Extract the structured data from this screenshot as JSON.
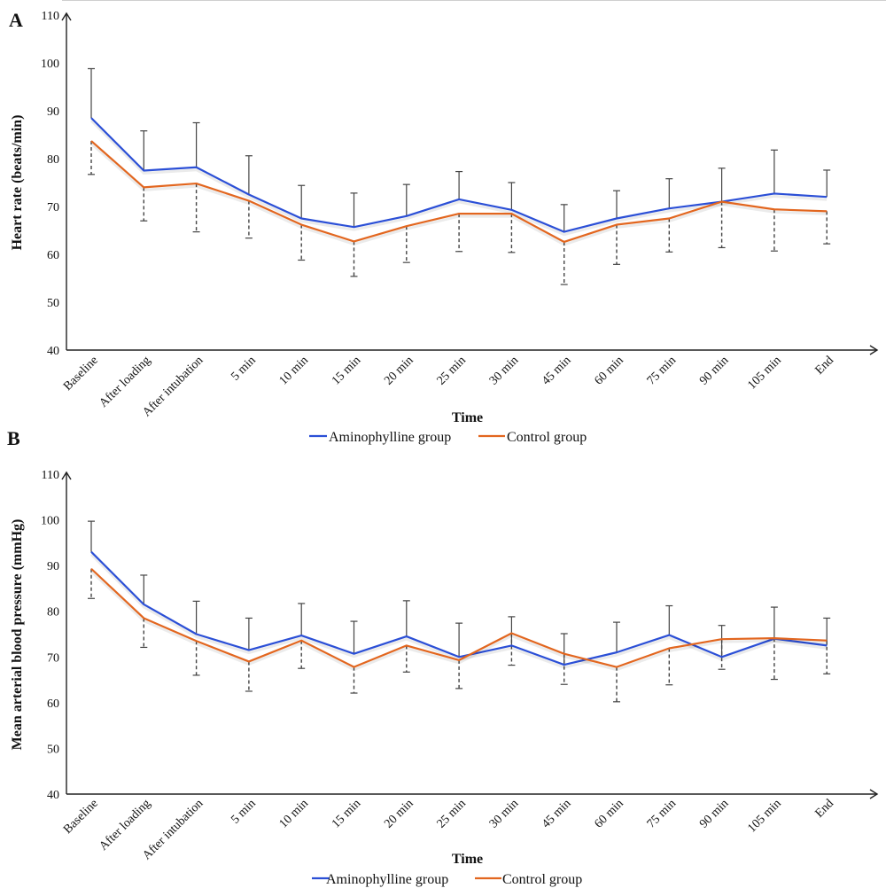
{
  "colors": {
    "aminophylline": "#2b4fd6",
    "control": "#e2661f",
    "axis": "#222222"
  },
  "chart_data": [
    {
      "type": "line",
      "panel_label": "A",
      "xlabel": "Time",
      "ylabel": "Heart rate (beats/min)",
      "ylim": [
        40,
        110
      ],
      "yticks": [
        "40",
        "50",
        "60",
        "70",
        "80",
        "90",
        "100",
        "110"
      ],
      "grid": false,
      "legend_position": "bottom-center",
      "categories": [
        "Baseline",
        "After loading",
        "After intubation",
        "5 min",
        "10 min",
        "15 min",
        "20 min",
        "25 min",
        "30 min",
        "45 min",
        "60 min",
        "75 min",
        "90 min",
        "105 min",
        "End"
      ],
      "series": [
        {
          "name": "Aminophylline group",
          "values": [
            88.5,
            77.5,
            78.2,
            72.5,
            67.5,
            65.7,
            68.0,
            71.5,
            69.3,
            64.7,
            67.5,
            69.6,
            71.0,
            72.7,
            72.0
          ],
          "error_upper": [
            98.8,
            85.8,
            87.5,
            80.6,
            74.4,
            72.8,
            74.6,
            77.3,
            75.0,
            70.4,
            73.3,
            75.8,
            78.0,
            81.8,
            77.6
          ],
          "error_style": "solid-up"
        },
        {
          "name": "Control group",
          "values": [
            83.7,
            74.0,
            74.8,
            71.2,
            66.2,
            62.7,
            65.9,
            68.5,
            68.5,
            62.6,
            66.2,
            67.5,
            71.0,
            69.4,
            69.0
          ],
          "error_lower": [
            76.7,
            67.0,
            64.7,
            63.4,
            58.8,
            55.4,
            58.3,
            60.6,
            60.4,
            53.7,
            57.9,
            60.5,
            61.4,
            60.7,
            62.2
          ],
          "error_style": "dashed-down"
        }
      ]
    },
    {
      "type": "line",
      "panel_label": "B",
      "xlabel": "Time",
      "ylabel": "Mean arterial blood pressure (mmHg)",
      "ylim": [
        40,
        110
      ],
      "yticks": [
        "40",
        "50",
        "60",
        "70",
        "80",
        "90",
        "100",
        "110"
      ],
      "grid": false,
      "legend_position": "bottom-center",
      "categories": [
        "Baseline",
        "After loading",
        "After intubation",
        "5 min",
        "10 min",
        "15 min",
        "20 min",
        "25 min",
        "30 min",
        "45 min",
        "60 min",
        "75 min",
        "90 min",
        "105 min",
        "End"
      ],
      "series": [
        {
          "name": "Aminophylline group",
          "values": [
            93.0,
            81.5,
            75.0,
            71.5,
            74.7,
            70.7,
            74.5,
            70.0,
            72.5,
            68.3,
            71.0,
            74.8,
            70.0,
            74.0,
            72.5
          ],
          "error_upper": [
            99.7,
            87.9,
            82.2,
            78.5,
            81.7,
            77.8,
            82.3,
            77.4,
            78.8,
            75.1,
            77.6,
            81.2,
            76.9,
            80.9,
            78.5
          ],
          "error_style": "solid-up"
        },
        {
          "name": "Control group",
          "values": [
            89.3,
            78.5,
            73.5,
            69.0,
            73.6,
            67.8,
            72.5,
            69.3,
            75.2,
            70.7,
            67.8,
            71.9,
            73.9,
            74.1,
            73.6
          ],
          "error_lower": [
            82.8,
            72.1,
            66.0,
            62.5,
            67.5,
            62.1,
            66.7,
            63.1,
            68.2,
            64.0,
            60.2,
            63.9,
            67.3,
            65.1,
            66.3
          ],
          "error_style": "dashed-down"
        }
      ]
    }
  ]
}
